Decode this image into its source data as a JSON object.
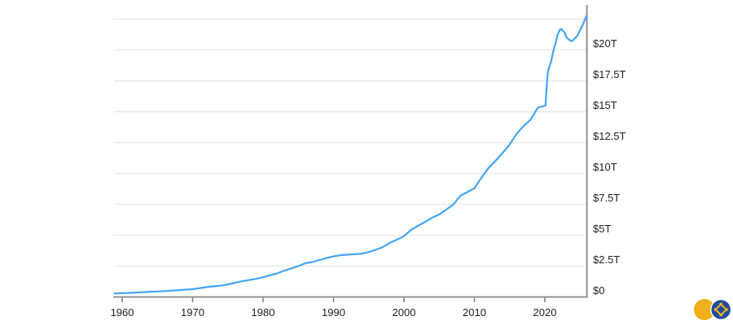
{
  "chart_data": {
    "type": "line",
    "title": "",
    "legend": "none",
    "grid": "horizontal",
    "x_axis": {
      "tick_labels": [
        "1960",
        "1970",
        "1980",
        "1990",
        "2000",
        "2010",
        "2020"
      ],
      "tick_values": [
        1960,
        1970,
        1980,
        1990,
        2000,
        2010,
        2020
      ],
      "range": [
        1958.84,
        2025.9
      ]
    },
    "y_axis": {
      "side": "right",
      "tick_labels": [
        "$20T",
        "$17.5T",
        "$15T",
        "$12.5T",
        "$10T",
        "$7.5T",
        "$5T",
        "$2.5T",
        "$0"
      ],
      "tick_values": [
        20,
        17.5,
        15,
        12.5,
        10,
        7.5,
        5,
        2.5,
        0
      ],
      "gridline_values": [
        2.5,
        5,
        7.5,
        10,
        12.5,
        15,
        17.5,
        20,
        22.5
      ],
      "range": [
        0,
        23.65
      ]
    },
    "series": [
      {
        "name": "",
        "color": "#42a5f5",
        "points": [
          [
            1958.9,
            0.29
          ],
          [
            1959,
            0.29
          ],
          [
            1960,
            0.31
          ],
          [
            1961,
            0.33
          ],
          [
            1962,
            0.36
          ],
          [
            1963,
            0.39
          ],
          [
            1964,
            0.42
          ],
          [
            1965,
            0.45
          ],
          [
            1966,
            0.47
          ],
          [
            1967,
            0.51
          ],
          [
            1968,
            0.55
          ],
          [
            1969,
            0.59
          ],
          [
            1970,
            0.63
          ],
          [
            1971,
            0.71
          ],
          [
            1972,
            0.8
          ],
          [
            1973,
            0.86
          ],
          [
            1974,
            0.91
          ],
          [
            1975,
            1.02
          ],
          [
            1976,
            1.15
          ],
          [
            1977,
            1.27
          ],
          [
            1978,
            1.37
          ],
          [
            1979,
            1.47
          ],
          [
            1980,
            1.6
          ],
          [
            1981,
            1.76
          ],
          [
            1982,
            1.91
          ],
          [
            1983,
            2.13
          ],
          [
            1984,
            2.31
          ],
          [
            1985,
            2.5
          ],
          [
            1986,
            2.73
          ],
          [
            1987,
            2.83
          ],
          [
            1988,
            2.99
          ],
          [
            1989,
            3.16
          ],
          [
            1990,
            3.28
          ],
          [
            1991,
            3.38
          ],
          [
            1992,
            3.43
          ],
          [
            1993,
            3.47
          ],
          [
            1994,
            3.5
          ],
          [
            1995,
            3.64
          ],
          [
            1996,
            3.82
          ],
          [
            1997,
            4.04
          ],
          [
            1998,
            4.38
          ],
          [
            1999,
            4.64
          ],
          [
            2000,
            4.92
          ],
          [
            2001,
            5.43
          ],
          [
            2002,
            5.77
          ],
          [
            2003,
            6.07
          ],
          [
            2004,
            6.42
          ],
          [
            2005,
            6.68
          ],
          [
            2006,
            7.07
          ],
          [
            2007,
            7.47
          ],
          [
            2008,
            8.19
          ],
          [
            2009,
            8.49
          ],
          [
            2010,
            8.8
          ],
          [
            2011,
            9.66
          ],
          [
            2012,
            10.45
          ],
          [
            2013,
            11.02
          ],
          [
            2014,
            11.67
          ],
          [
            2015,
            12.34
          ],
          [
            2016,
            13.21
          ],
          [
            2017,
            13.85
          ],
          [
            2018,
            14.37
          ],
          [
            2019,
            15.33
          ],
          [
            2020.1,
            15.5
          ],
          [
            2020.25,
            16.9
          ],
          [
            2020.4,
            18.1
          ],
          [
            2020.6,
            18.6
          ],
          [
            2020.9,
            19.1
          ],
          [
            2021.2,
            19.9
          ],
          [
            2021.5,
            20.5
          ],
          [
            2021.8,
            21.2
          ],
          [
            2022.1,
            21.6
          ],
          [
            2022.3,
            21.7
          ],
          [
            2022.5,
            21.6
          ],
          [
            2022.8,
            21.4
          ],
          [
            2023.1,
            21.0
          ],
          [
            2023.4,
            20.85
          ],
          [
            2023.8,
            20.7
          ],
          [
            2024.2,
            20.9
          ],
          [
            2024.6,
            21.15
          ],
          [
            2025.0,
            21.6
          ],
          [
            2025.4,
            22.05
          ],
          [
            2025.9,
            22.75
          ]
        ]
      }
    ],
    "colors": {
      "axis": "#858585",
      "gridline": "#ebebeb",
      "tick_label": "#1f1f1f",
      "background": "#ffffff"
    }
  },
  "logo": {
    "coin_yellow_color": "#F2AF1D",
    "coin_blue_color": "#1C4C9E"
  }
}
